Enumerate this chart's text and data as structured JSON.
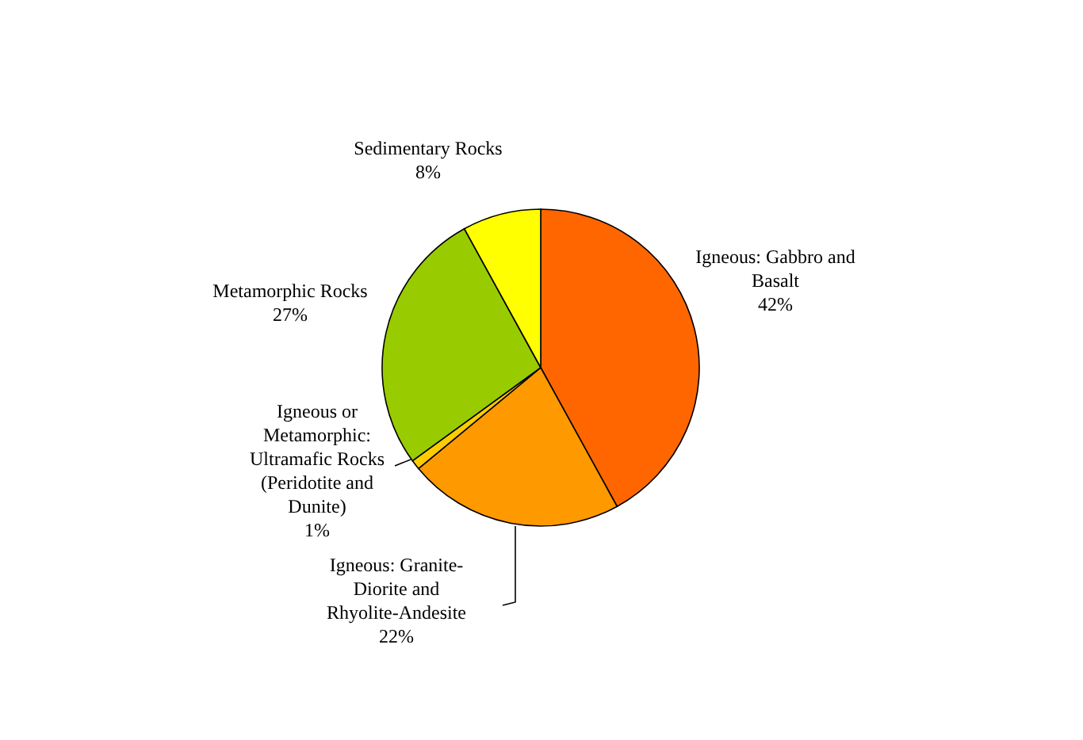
{
  "chart_data": {
    "type": "pie",
    "categories": [
      "Igneous: Gabbro and Basalt",
      "Igneous: Granite-Diorite and Rhyolite-Andesite",
      "Igneous or Metamorphic: Ultramafic Rocks (Peridotite and Dunite)",
      "Metamorphic Rocks",
      "Sedimentary Rocks"
    ],
    "values": [
      42,
      22,
      1,
      27,
      8
    ],
    "value_labels": [
      "42%",
      "22%",
      "1%",
      "27%",
      "8%"
    ],
    "colors": [
      "#ff6600",
      "#ff9900",
      "#ffcc00",
      "#99cc00",
      "#ffff00"
    ],
    "legend": false
  }
}
